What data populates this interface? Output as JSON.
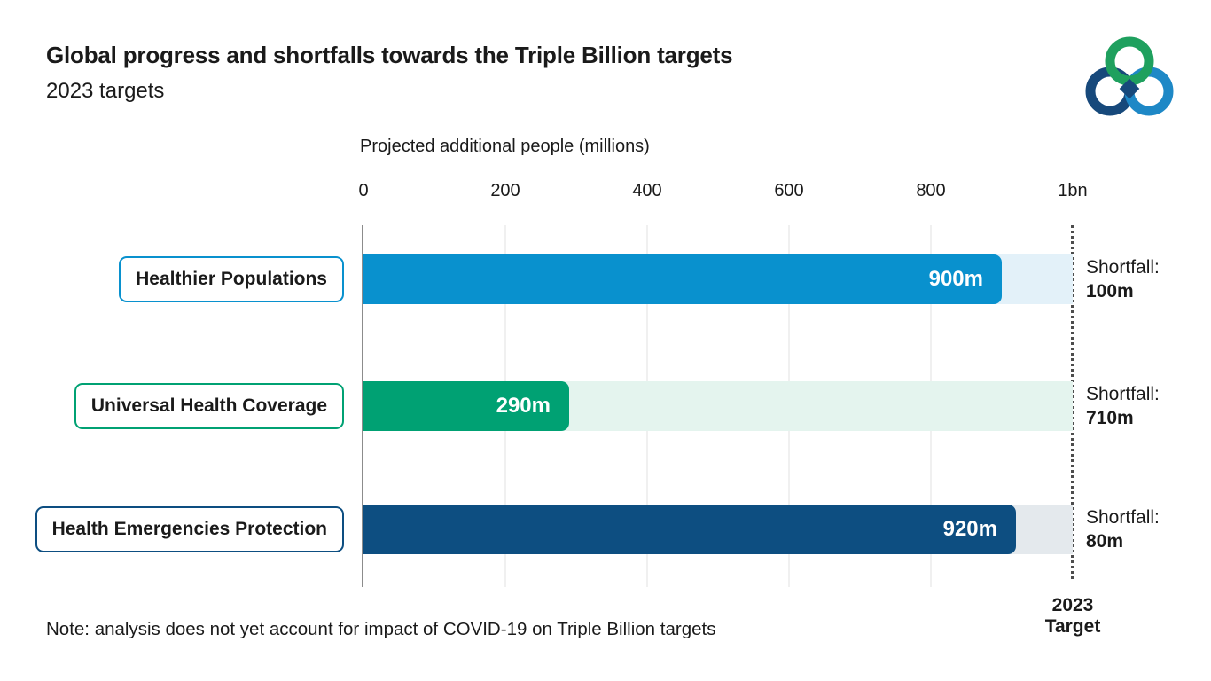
{
  "header": {
    "title": "Global progress and shortfalls towards the Triple Billion targets",
    "subtitle": "2023 targets"
  },
  "chart_data": {
    "type": "bar",
    "orientation": "horizontal",
    "title": "Global progress and shortfalls towards the Triple Billion targets",
    "subtitle": "2023 targets",
    "xlabel": "Projected additional people (millions)",
    "xlim": [
      0,
      1000
    ],
    "tick_labels": [
      "0",
      "200",
      "400",
      "600",
      "800",
      "1bn"
    ],
    "tick_values": [
      0,
      200,
      400,
      600,
      800,
      1000
    ],
    "grid": true,
    "legend": false,
    "target_value": 1000,
    "shortfall_prefix": "Shortfall:",
    "rows": [
      {
        "category": "Healthier Populations",
        "value": 900,
        "value_label": "900m",
        "shortfall": 100,
        "shortfall_label": "100m",
        "bar_color": "#0991CE",
        "track_color": "#E3F1F9"
      },
      {
        "category": "Universal Health Coverage",
        "value": 290,
        "value_label": "290m",
        "shortfall": 710,
        "shortfall_label": "710m",
        "bar_color": "#00A173",
        "track_color": "#E4F4EE"
      },
      {
        "category": "Health Emergencies Protection",
        "value": 920,
        "value_label": "920m",
        "shortfall": 80,
        "shortfall_label": "80m",
        "bar_color": "#0D4E81",
        "track_color": "#E4E9ED"
      }
    ]
  },
  "footer": {
    "note": "Note: analysis does not yet account for impact of COVID-19 on Triple Billion targets",
    "target_line1": "2023",
    "target_line2": "Target"
  },
  "logo_colors": {
    "green": "#1FA05E",
    "dark_blue": "#17497B",
    "light_blue": "#1E88C6"
  }
}
